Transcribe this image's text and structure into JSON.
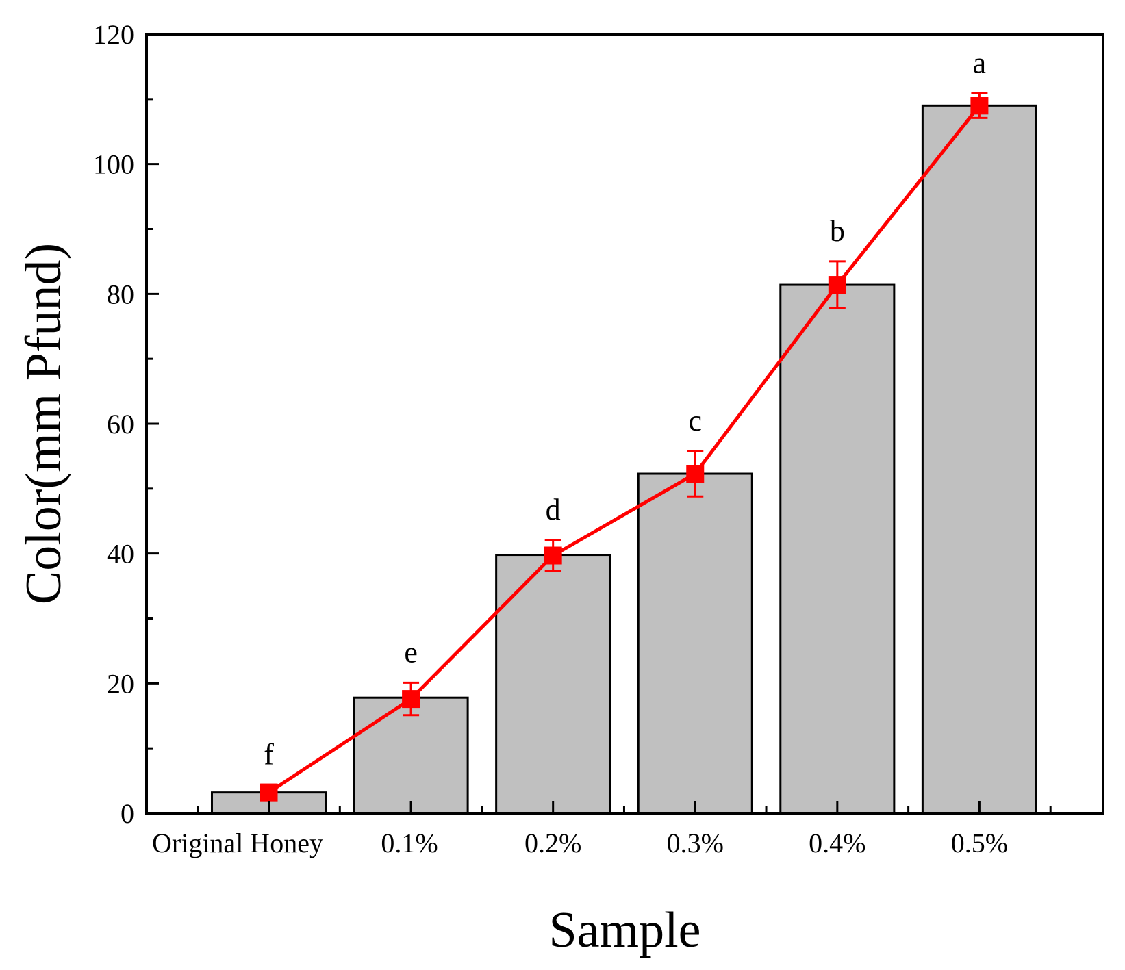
{
  "chart_data": {
    "type": "bar",
    "title": "",
    "xlabel": "Sample",
    "ylabel": "Color(mm Pfund)",
    "categories": [
      "Original Honey",
      "0.1%",
      "0.2%",
      "0.3%",
      "0.4%",
      "0.5%"
    ],
    "bar_values": [
      3.2,
      17.8,
      39.8,
      52.3,
      81.4,
      109.0
    ],
    "line_series": {
      "values": [
        3.2,
        17.6,
        39.7,
        52.3,
        81.4,
        109.0
      ],
      "errors": [
        1.2,
        2.5,
        2.4,
        3.5,
        3.6,
        1.9
      ]
    },
    "significance_labels": [
      "f",
      "e",
      "d",
      "c",
      "b",
      "a"
    ],
    "ylim": [
      0,
      120
    ],
    "yticks": [
      0,
      20,
      40,
      60,
      80,
      100,
      120
    ],
    "grid": false,
    "legend": "none",
    "colors": {
      "bar_fill": "#c0c0c0",
      "bar_stroke": "#000000",
      "line": "#ff0000",
      "marker": "#ff0000"
    }
  }
}
